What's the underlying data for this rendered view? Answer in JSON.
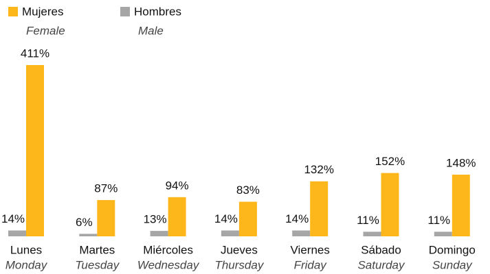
{
  "chart_data": {
    "type": "bar",
    "categories": [
      "Lunes",
      "Martes",
      "Miércoles",
      "Jueves",
      "Viernes",
      "Sábado",
      "Domingo"
    ],
    "category_translations": [
      "Monday",
      "Tuesday",
      "Wednesday",
      "Thursday",
      "Friday",
      "Saturday",
      "Sunday"
    ],
    "series": [
      {
        "name": "Hombres",
        "name_translation": "Male",
        "color": "#a6a6a6",
        "values": [
          14,
          6,
          13,
          14,
          14,
          11,
          11
        ],
        "value_labels": [
          "14%",
          "6%",
          "13%",
          "14%",
          "14%",
          "11%",
          "11%"
        ]
      },
      {
        "name": "Mujeres",
        "name_translation": "Female",
        "color": "#fdb71a",
        "values": [
          411,
          87,
          94,
          83,
          132,
          152,
          148
        ],
        "value_labels": [
          "411%",
          "87%",
          "94%",
          "83%",
          "132%",
          "152%",
          "148%"
        ]
      }
    ]
  }
}
